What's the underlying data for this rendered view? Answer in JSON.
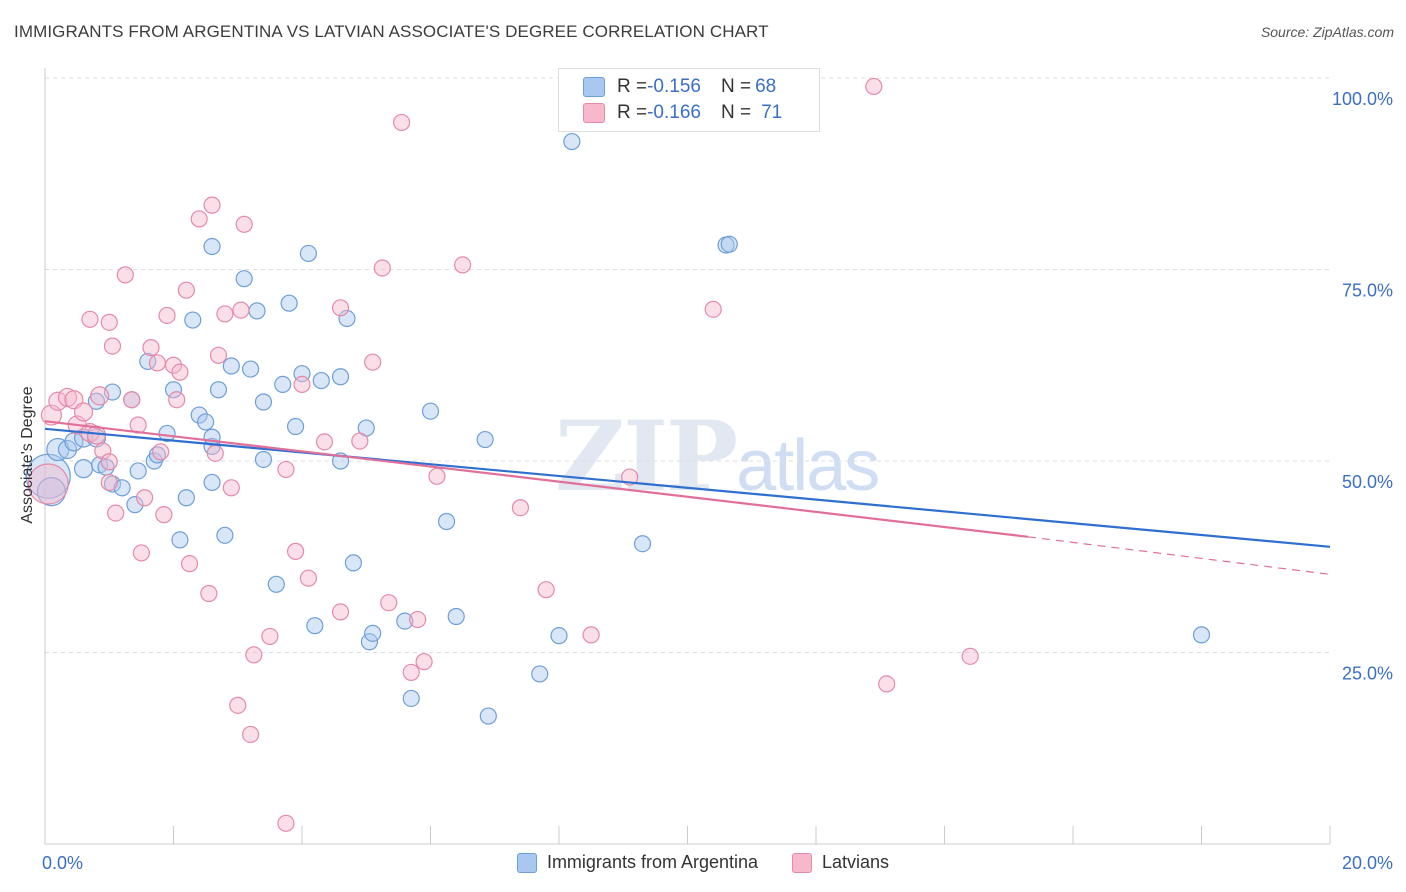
{
  "title": "IMMIGRANTS FROM ARGENTINA VS LATVIAN ASSOCIATE'S DEGREE CORRELATION CHART",
  "source": "Source: ZipAtlas.com",
  "watermark": {
    "zip": "ZIP",
    "atlas": "atlas"
  },
  "legend_top": {
    "rows": [
      {
        "r_label": "R = ",
        "r_value": "-0.156",
        "n_label": "N = ",
        "n_value": "68"
      },
      {
        "r_label": "R = ",
        "r_value": "-0.166",
        "n_label": "N = ",
        "n_value": "71"
      }
    ]
  },
  "colors": {
    "blue_fill": "#a9c7ef",
    "blue_stroke": "#6e9fd8",
    "blue_line": "#2f6fd0",
    "pink_fill": "#f6b9cc",
    "pink_stroke": "#e58aa8",
    "pink_line": "#e0709a",
    "tick_label": "#3b6fc4",
    "grid": "#dddddd"
  },
  "chart_data": {
    "type": "scatter",
    "title": "IMMIGRANTS FROM ARGENTINA VS LATVIAN ASSOCIATE'S DEGREE CORRELATION CHART",
    "xlabel": "",
    "ylabel": "Associate's Degree",
    "xlim": [
      0,
      20
    ],
    "ylim": [
      0,
      100
    ],
    "x_ticks_labeled": [
      "0.0%",
      "20.0%"
    ],
    "y_ticks": [
      25,
      50,
      75,
      100
    ],
    "y_tick_labels": [
      "25.0%",
      "50.0%",
      "75.0%",
      "100.0%"
    ],
    "grid": true,
    "legend": "bottom",
    "series": [
      {
        "name": "Immigrants from Argentina",
        "color": "#a9c7ef",
        "r": -0.156,
        "n": 68,
        "trend": {
          "x": [
            0,
            20
          ],
          "y": [
            54.2,
            38.8
          ]
        },
        "points": [
          [
            0.05,
            48,
            22
          ],
          [
            0.1,
            46,
            14
          ],
          [
            0.2,
            51.5,
            11
          ],
          [
            0.35,
            51.5,
            9
          ],
          [
            0.45,
            52.5,
            9
          ],
          [
            0.6,
            53,
            9
          ],
          [
            0.8,
            53,
            9
          ],
          [
            0.6,
            49,
            9
          ],
          [
            0.85,
            49.5,
            8
          ],
          [
            0.95,
            49.2,
            8
          ],
          [
            1.05,
            47,
            8
          ],
          [
            1.2,
            46.5,
            8
          ],
          [
            0.8,
            57.8,
            8
          ],
          [
            1.05,
            59,
            8
          ],
          [
            1.35,
            58,
            8
          ],
          [
            1.4,
            44.3,
            8
          ],
          [
            1.45,
            48.7,
            8
          ],
          [
            1.7,
            50,
            8
          ],
          [
            1.75,
            50.8,
            8
          ],
          [
            1.9,
            53.6,
            8
          ],
          [
            2.0,
            59.3,
            8
          ],
          [
            1.6,
            63,
            8
          ],
          [
            2.1,
            39.7,
            8
          ],
          [
            2.2,
            45.2,
            8
          ],
          [
            2.3,
            68.4,
            8
          ],
          [
            2.4,
            56,
            8
          ],
          [
            2.5,
            55.1,
            8
          ],
          [
            2.6,
            78,
            8
          ],
          [
            2.6,
            51.9,
            8
          ],
          [
            2.6,
            53.1,
            8
          ],
          [
            2.6,
            47.2,
            8
          ],
          [
            2.7,
            59.3,
            8
          ],
          [
            2.9,
            62.4,
            8
          ],
          [
            2.8,
            40.3,
            8
          ],
          [
            3.1,
            73.8,
            8
          ],
          [
            3.2,
            62,
            8
          ],
          [
            3.3,
            69.6,
            8
          ],
          [
            3.4,
            50.2,
            8
          ],
          [
            3.4,
            57.7,
            8
          ],
          [
            3.6,
            33.9,
            8
          ],
          [
            3.7,
            60,
            8
          ],
          [
            3.8,
            70.6,
            8
          ],
          [
            3.9,
            54.5,
            8
          ],
          [
            4.0,
            61.4,
            8
          ],
          [
            4.1,
            77.1,
            8
          ],
          [
            4.2,
            28.5,
            8
          ],
          [
            4.3,
            60.5,
            8
          ],
          [
            4.6,
            61,
            8
          ],
          [
            4.6,
            50,
            8
          ],
          [
            4.7,
            68.6,
            8
          ],
          [
            4.8,
            36.7,
            8
          ],
          [
            5.0,
            54.3,
            8
          ],
          [
            5.05,
            26.4,
            8
          ],
          [
            5.1,
            27.5,
            8
          ],
          [
            5.6,
            29.1,
            8
          ],
          [
            5.7,
            19,
            8
          ],
          [
            6.0,
            56.5,
            8
          ],
          [
            6.25,
            42.1,
            8
          ],
          [
            6.4,
            29.7,
            8
          ],
          [
            6.85,
            52.8,
            8
          ],
          [
            6.9,
            16.7,
            8
          ],
          [
            7.7,
            22.2,
            8
          ],
          [
            8.0,
            27.2,
            8
          ],
          [
            8.2,
            91.7,
            8
          ],
          [
            9.3,
            39.2,
            8
          ],
          [
            10.6,
            78.2,
            8
          ],
          [
            10.65,
            78.3,
            8
          ],
          [
            18.0,
            27.3,
            8
          ]
        ]
      },
      {
        "name": "Latvians",
        "color": "#f6b9cc",
        "r": -0.166,
        "n": 71,
        "trend": {
          "x": [
            0,
            15.3
          ],
          "y": [
            55.2,
            40.1
          ]
        },
        "trend_dashed": {
          "x": [
            15.3,
            20
          ],
          "y": [
            40.1,
            35.2
          ]
        },
        "points": [
          [
            0.05,
            47,
            20
          ],
          [
            0.1,
            56,
            10
          ],
          [
            0.2,
            57.8,
            9
          ],
          [
            0.35,
            58.3,
            9
          ],
          [
            0.45,
            58,
            9
          ],
          [
            0.5,
            54.7,
            9
          ],
          [
            0.6,
            56.4,
            9
          ],
          [
            0.7,
            53.7,
            9
          ],
          [
            0.8,
            53.4,
            9
          ],
          [
            0.85,
            58.5,
            9
          ],
          [
            0.7,
            68.5,
            8
          ],
          [
            0.9,
            51.3,
            8
          ],
          [
            1.0,
            49.9,
            8
          ],
          [
            1.0,
            47.2,
            8
          ],
          [
            1.1,
            43.2,
            8
          ],
          [
            1.0,
            68.1,
            8
          ],
          [
            1.05,
            65,
            8
          ],
          [
            1.25,
            74.3,
            8
          ],
          [
            1.35,
            58,
            8
          ],
          [
            1.45,
            54.7,
            8
          ],
          [
            1.5,
            38,
            8
          ],
          [
            1.55,
            45.2,
            8
          ],
          [
            1.65,
            64.8,
            8
          ],
          [
            1.75,
            62.8,
            8
          ],
          [
            1.8,
            51.2,
            8
          ],
          [
            1.85,
            43,
            8
          ],
          [
            1.9,
            69,
            8
          ],
          [
            2.0,
            62.5,
            8
          ],
          [
            2.05,
            58,
            8
          ],
          [
            2.1,
            61.6,
            8
          ],
          [
            2.2,
            72.3,
            8
          ],
          [
            2.25,
            36.6,
            8
          ],
          [
            2.4,
            81.6,
            8
          ],
          [
            2.55,
            32.7,
            8
          ],
          [
            2.6,
            83.4,
            8
          ],
          [
            2.65,
            51,
            8
          ],
          [
            2.7,
            63.8,
            8
          ],
          [
            2.8,
            69.2,
            8
          ],
          [
            2.9,
            46.5,
            8
          ],
          [
            3.0,
            18.1,
            8
          ],
          [
            3.1,
            80.9,
            8
          ],
          [
            3.05,
            69.7,
            8
          ],
          [
            3.2,
            14.3,
            8
          ],
          [
            3.25,
            24.7,
            8
          ],
          [
            3.5,
            27.1,
            8
          ],
          [
            3.75,
            2.7,
            8
          ],
          [
            3.75,
            48.9,
            8
          ],
          [
            3.9,
            38.2,
            8
          ],
          [
            4.0,
            60,
            8
          ],
          [
            4.1,
            34.7,
            8
          ],
          [
            4.35,
            52.5,
            8
          ],
          [
            4.6,
            70,
            8
          ],
          [
            4.6,
            30.3,
            8
          ],
          [
            4.9,
            52.6,
            8
          ],
          [
            5.1,
            62.9,
            8
          ],
          [
            5.25,
            75.2,
            8
          ],
          [
            5.35,
            31.5,
            8
          ],
          [
            5.55,
            94.2,
            8
          ],
          [
            5.7,
            22.4,
            8
          ],
          [
            5.8,
            29.3,
            8
          ],
          [
            5.9,
            23.8,
            8
          ],
          [
            6.1,
            48,
            8
          ],
          [
            6.5,
            75.6,
            8
          ],
          [
            7.4,
            43.9,
            8
          ],
          [
            7.8,
            33.2,
            8
          ],
          [
            8.5,
            27.3,
            8
          ],
          [
            9.1,
            47.9,
            8
          ],
          [
            10.4,
            69.8,
            8
          ],
          [
            12.9,
            98.9,
            8
          ],
          [
            13.1,
            20.9,
            8
          ],
          [
            14.4,
            24.5,
            8
          ]
        ]
      }
    ]
  },
  "legend_bottom": [
    {
      "label": "Immigrants from Argentina",
      "color": "#a9c7ef",
      "stroke": "#6e9fd8"
    },
    {
      "label": "Latvians",
      "color": "#f6b9cc",
      "stroke": "#e58aa8"
    }
  ]
}
